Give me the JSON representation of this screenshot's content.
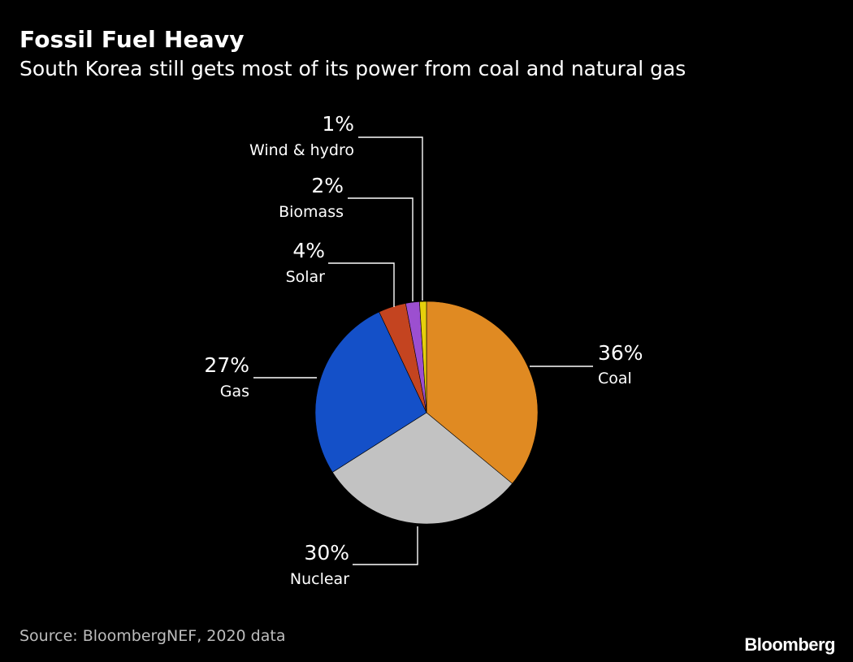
{
  "title": "Fossil Fuel Heavy",
  "subtitle": "South Korea still gets most of its power from coal and natural gas",
  "source": "Source: BloombergNEF, 2020 data",
  "brand": "Bloomberg",
  "chart_data": {
    "type": "pie",
    "title": "Fossil Fuel Heavy",
    "subtitle": "South Korea still gets most of its power from coal and natural gas",
    "slices": [
      {
        "name": "Coal",
        "value": 36,
        "label": "36%",
        "color": "#e08a22"
      },
      {
        "name": "Nuclear",
        "value": 30,
        "label": "30%",
        "color": "#c2c2c2"
      },
      {
        "name": "Gas",
        "value": 27,
        "label": "27%",
        "color": "#1450c8"
      },
      {
        "name": "Solar",
        "value": 4,
        "label": "4%",
        "color": "#c44420"
      },
      {
        "name": "Biomass",
        "value": 2,
        "label": "2%",
        "color": "#9c4fd0"
      },
      {
        "name": "Wind & hydro",
        "value": 1,
        "label": "1%",
        "color": "#e6cf0c"
      }
    ]
  }
}
